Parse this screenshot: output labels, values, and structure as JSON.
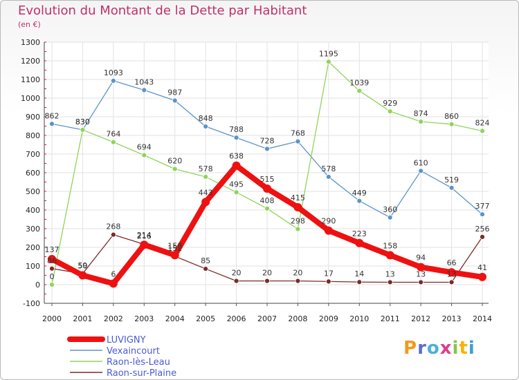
{
  "title": "Evolution du Montant de la Dette par Habitant",
  "subtitle": "(en €)",
  "logo": "Proxiti",
  "chart_data": {
    "type": "line",
    "x": [
      "2000",
      "2001",
      "2002",
      "2003",
      "2004",
      "2005",
      "2006",
      "2007",
      "2008",
      "2009",
      "2010",
      "2011",
      "2012",
      "2013",
      "2014"
    ],
    "ylim": [
      -100,
      1300
    ],
    "yticks": [
      -100,
      0,
      100,
      200,
      300,
      400,
      500,
      600,
      700,
      800,
      900,
      1000,
      1100,
      1200,
      1300
    ],
    "grid": true,
    "legend": "bottom-left",
    "series": [
      {
        "name": "LUVIGNY",
        "color": "#ee1111",
        "values": [
          137,
          50,
          6,
          214,
          158,
          443,
          638,
          515,
          415,
          290,
          223,
          158,
          94,
          66,
          41
        ]
      },
      {
        "name": "Vexaincourt",
        "color": "#5b94c8",
        "values": [
          862,
          830,
          1093,
          1043,
          987,
          848,
          788,
          728,
          768,
          578,
          449,
          360,
          610,
          519,
          377
        ]
      },
      {
        "name": "Raon-lès-Leau",
        "color": "#8fd45a",
        "values": [
          0,
          830,
          764,
          694,
          620,
          578,
          495,
          408,
          298,
          1195,
          1039,
          929,
          874,
          860,
          824
        ]
      },
      {
        "name": "Raon-sur-Plaine",
        "color": "#7a2a2a",
        "values": [
          86,
          59,
          268,
          216,
          152,
          85,
          20,
          20,
          20,
          17,
          14,
          13,
          13,
          13,
          256
        ]
      }
    ]
  }
}
